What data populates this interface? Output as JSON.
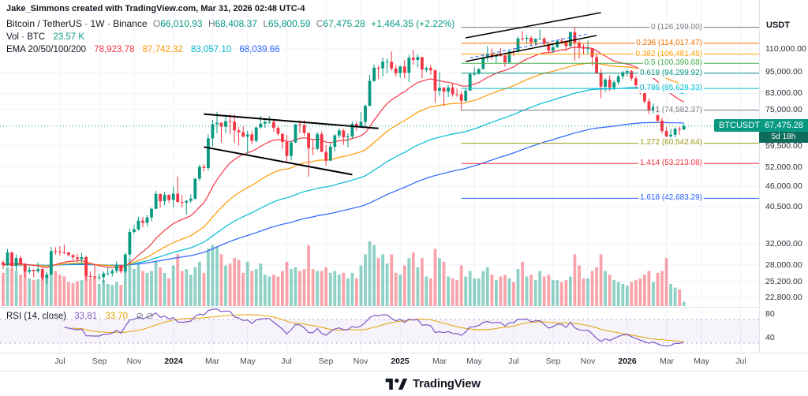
{
  "attribution": "Jake_Simmons created with TradingView.com, Mar 31, 2026 02:48 UTC-4",
  "symbol_legend": {
    "title": "Bitcoin / TetherUS · 1W · Binance",
    "o_label": "O",
    "o": "66,010.93",
    "h_label": "H",
    "h": "68,408.37",
    "l_label": "L",
    "l": "65,800.59",
    "c_label": "C",
    "c": "67,475.28",
    "change": "+1,464.35 (+2.22%)"
  },
  "volume_legend": {
    "label": "Vol · BTC",
    "value": "23.57 K"
  },
  "ema_legend": {
    "label": "EMA 20/50/100/200",
    "v20": "78,923.78",
    "v50": "87,742.32",
    "v100": "83,057.10",
    "v200": "68,039.66"
  },
  "rsi_legend": {
    "label": "RSI (14, close)",
    "rsi": "33.81",
    "ma": "33.70"
  },
  "colors": {
    "up": "#089981",
    "down": "#f23645",
    "ema20": "#f23645",
    "ema50": "#ff9800",
    "ema100": "#00bcd4",
    "ema200": "#2962ff",
    "rsi": "#7e57c2",
    "rsi_ma": "#e2a400",
    "grid": "#f0f3fa",
    "separator": "#e0e3eb",
    "badge": "#089981",
    "muted": "#787b86"
  },
  "price_axis": {
    "currency": "USDT",
    "labels": [
      {
        "text": "110,000.00",
        "p": 110000
      },
      {
        "text": "95,000.00",
        "p": 95000
      },
      {
        "text": "83,000.00",
        "p": 83000
      },
      {
        "text": "75,000.00",
        "p": 75000
      },
      {
        "text": "59,500.00",
        "p": 59500
      },
      {
        "text": "52,000.00",
        "p": 52000
      },
      {
        "text": "46,000.00",
        "p": 46000
      },
      {
        "text": "40,500.00",
        "p": 40500
      },
      {
        "text": "32,000.00",
        "p": 32000
      },
      {
        "text": "28,000.00",
        "p": 28000
      },
      {
        "text": "25,200.00",
        "p": 25200
      },
      {
        "text": "22,800.00",
        "p": 22800
      }
    ],
    "current": {
      "symbol": "BTCUSDT",
      "price": "67,475.28",
      "countdown": "5d 18h"
    },
    "rsi_labels": [
      {
        "text": "80",
        "v": 80
      },
      {
        "text": "40",
        "v": 40
      }
    ]
  },
  "time_axis": [
    {
      "text": "Jul",
      "i": 13
    },
    {
      "text": "Sep",
      "i": 22
    },
    {
      "text": "Nov",
      "i": 30
    },
    {
      "text": "2024",
      "i": 39,
      "year": true
    },
    {
      "text": "Mar",
      "i": 48
    },
    {
      "text": "May",
      "i": 56
    },
    {
      "text": "Jul",
      "i": 65
    },
    {
      "text": "Sep",
      "i": 74
    },
    {
      "text": "Nov",
      "i": 82
    },
    {
      "text": "2025",
      "i": 91,
      "year": true
    },
    {
      "text": "Mar",
      "i": 100
    },
    {
      "text": "May",
      "i": 108
    },
    {
      "text": "Jul",
      "i": 117
    },
    {
      "text": "Sep",
      "i": 126
    },
    {
      "text": "Nov",
      "i": 134
    },
    {
      "text": "2026",
      "i": 143,
      "year": true
    },
    {
      "text": "Mar",
      "i": 152
    },
    {
      "text": "May",
      "i": 160
    },
    {
      "text": "Jul",
      "i": 169
    }
  ],
  "fib_levels": [
    {
      "text": "0 (126,199.00)",
      "p": 126199.0,
      "color": "#787b86"
    },
    {
      "text": "0.236 (114,017.47)",
      "p": 114017.47,
      "color": "#ef6c00"
    },
    {
      "text": "0.382 (106,481.45)",
      "p": 106481.45,
      "color": "#ffa000"
    },
    {
      "text": "0.5 (100,390.68)",
      "p": 100390.68,
      "color": "#4caf50"
    },
    {
      "text": "0.618 (94,299.92)",
      "p": 94299.92,
      "color": "#089981"
    },
    {
      "text": "0.786 (85,628.33)",
      "p": 85628.33,
      "color": "#00bcd4"
    },
    {
      "text": "1 (74,582.37)",
      "p": 74582.37,
      "color": "#787b86"
    },
    {
      "text": "1.272 (60,542.64)",
      "p": 60542.64,
      "color": "#9e9d24"
    },
    {
      "text": "1.414 (53,213.08)",
      "p": 53213.08,
      "color": "#f23645"
    },
    {
      "text": "1.618 (42,683.29)",
      "p": 42683.29,
      "color": "#2962ff"
    }
  ],
  "branding": {
    "name": "TradingView"
  },
  "chart_data": {
    "type": "candlestick",
    "symbol": "BTCUSDT",
    "exchange": "Binance",
    "timeframe": "1W",
    "scale": "log",
    "start_date": "2023-04-03",
    "interval_days": 7,
    "last_close": 67475.28,
    "ema_periods": [
      20,
      50,
      100,
      200
    ],
    "rsi": {
      "length": 14,
      "source": "close"
    },
    "fib_start_i": 105,
    "drawings": [
      {
        "type": "trendline",
        "i1": 46,
        "p1": 72800,
        "i2": 86,
        "p2": 66500,
        "color": "#000000",
        "width": 2
      },
      {
        "type": "trendline",
        "i1": 46,
        "p1": 59100,
        "i2": 80,
        "p2": 49600,
        "color": "#000000",
        "width": 2
      },
      {
        "type": "trendline",
        "i1": 106,
        "p1": 118000,
        "i2": 137,
        "p2": 138500,
        "color": "#000000",
        "width": 1.5
      },
      {
        "type": "trendline",
        "i1": 106,
        "p1": 101600,
        "i2": 136,
        "p2": 119800,
        "color": "#000000",
        "width": 1.5
      },
      {
        "type": "trendline",
        "i1": 107,
        "p1": 104000,
        "i2": 134,
        "p2": 121000,
        "color": "#2962ff",
        "width": 1,
        "dash": "4 3"
      }
    ],
    "candles": [
      [
        28450,
        28800,
        27250,
        27950,
        180
      ],
      [
        27950,
        30950,
        27800,
        30300,
        210
      ],
      [
        30300,
        30400,
        27050,
        27800,
        200
      ],
      [
        27800,
        29900,
        26950,
        29250,
        190
      ],
      [
        29250,
        29700,
        27700,
        28080,
        170
      ],
      [
        28080,
        28320,
        25850,
        26800,
        185
      ],
      [
        26800,
        27700,
        26400,
        27100,
        150
      ],
      [
        27100,
        27200,
        25900,
        26870,
        140
      ],
      [
        26870,
        28450,
        26550,
        27250,
        145
      ],
      [
        27250,
        27400,
        25350,
        25750,
        175
      ],
      [
        25750,
        26800,
        24800,
        26340,
        160
      ],
      [
        26340,
        31400,
        26250,
        30550,
        230
      ],
      [
        30550,
        31300,
        29850,
        30480,
        190
      ],
      [
        30480,
        31550,
        29700,
        30330,
        170
      ],
      [
        30330,
        31850,
        29950,
        30290,
        160
      ],
      [
        30290,
        30340,
        29550,
        29790,
        130
      ],
      [
        29790,
        29970,
        28850,
        29350,
        125
      ],
      [
        29350,
        30050,
        28550,
        29050,
        135
      ],
      [
        29050,
        30200,
        28350,
        29400,
        140
      ],
      [
        29400,
        29650,
        25300,
        26100,
        220
      ],
      [
        26100,
        26850,
        25750,
        26000,
        150
      ],
      [
        26000,
        28150,
        25550,
        25900,
        160
      ],
      [
        25900,
        26450,
        25350,
        25900,
        120
      ],
      [
        25900,
        26850,
        24900,
        26500,
        140
      ],
      [
        26500,
        27450,
        26150,
        26550,
        120
      ],
      [
        26550,
        27300,
        26000,
        26950,
        115
      ],
      [
        26950,
        28600,
        26550,
        27950,
        130
      ],
      [
        27950,
        27990,
        26500,
        26850,
        115
      ],
      [
        26850,
        30250,
        26600,
        29900,
        190
      ],
      [
        29900,
        35250,
        29350,
        34500,
        260
      ],
      [
        34500,
        36000,
        34050,
        35050,
        200
      ],
      [
        35050,
        38000,
        34750,
        37050,
        230
      ],
      [
        37050,
        37950,
        35550,
        36550,
        190
      ],
      [
        36550,
        38450,
        35750,
        37800,
        180
      ],
      [
        37800,
        40250,
        36850,
        39950,
        190
      ],
      [
        39950,
        44750,
        39850,
        43900,
        240
      ],
      [
        43900,
        43990,
        40150,
        41900,
        210
      ],
      [
        41900,
        44400,
        40800,
        43600,
        180
      ],
      [
        43600,
        43800,
        41450,
        42250,
        150
      ],
      [
        42250,
        45950,
        40250,
        43950,
        220
      ],
      [
        43950,
        48990,
        41500,
        41700,
        280
      ],
      [
        41700,
        43580,
        40280,
        41550,
        190
      ],
      [
        41550,
        42250,
        38500,
        42000,
        200
      ],
      [
        42000,
        43790,
        41420,
        42600,
        170
      ],
      [
        42600,
        48600,
        42270,
        48300,
        210
      ],
      [
        48300,
        52890,
        47710,
        52100,
        240
      ],
      [
        52100,
        52990,
        50630,
        51700,
        180
      ],
      [
        51700,
        64000,
        50930,
        62400,
        310
      ],
      [
        62400,
        70200,
        59250,
        68300,
        330
      ],
      [
        68300,
        73800,
        64550,
        68900,
        320
      ],
      [
        68900,
        68990,
        60800,
        67200,
        280
      ],
      [
        67200,
        71580,
        64550,
        69600,
        220
      ],
      [
        69600,
        72800,
        64100,
        69350,
        230
      ],
      [
        69350,
        72750,
        60660,
        65650,
        260
      ],
      [
        65650,
        67120,
        59640,
        64940,
        250
      ],
      [
        64940,
        67230,
        62780,
        63100,
        180
      ],
      [
        63100,
        65500,
        56500,
        64000,
        240
      ],
      [
        64000,
        65500,
        60170,
        61450,
        190
      ],
      [
        61450,
        67080,
        60800,
        66900,
        200
      ],
      [
        66900,
        71980,
        66310,
        68500,
        230
      ],
      [
        68500,
        70650,
        66670,
        69300,
        170
      ],
      [
        69300,
        71950,
        68450,
        69300,
        160
      ],
      [
        69300,
        70190,
        65100,
        66700,
        170
      ],
      [
        66700,
        67290,
        63380,
        64250,
        160
      ],
      [
        64250,
        64520,
        58400,
        61000,
        190
      ],
      [
        61000,
        63850,
        53500,
        55850,
        240
      ],
      [
        55850,
        61400,
        54260,
        60800,
        200
      ],
      [
        60800,
        68360,
        60630,
        68150,
        210
      ],
      [
        68150,
        69990,
        64530,
        67900,
        190
      ],
      [
        67900,
        70080,
        63500,
        64600,
        200
      ],
      [
        64600,
        64700,
        49000,
        58700,
        330
      ],
      [
        58700,
        61850,
        56100,
        58450,
        200
      ],
      [
        58450,
        64950,
        57860,
        64100,
        190
      ],
      [
        64100,
        65200,
        57250,
        57300,
        190
      ],
      [
        57300,
        59830,
        52550,
        54160,
        210
      ],
      [
        54160,
        60660,
        54150,
        59180,
        180
      ],
      [
        59180,
        64100,
        57480,
        63580,
        190
      ],
      [
        63580,
        66480,
        62550,
        65600,
        170
      ],
      [
        65600,
        66290,
        59860,
        62800,
        180
      ],
      [
        62800,
        64450,
        58950,
        63200,
        150
      ],
      [
        63200,
        69400,
        62450,
        68400,
        180
      ],
      [
        68400,
        69520,
        65500,
        67000,
        150
      ],
      [
        67000,
        73600,
        66800,
        69300,
        220
      ],
      [
        69300,
        77300,
        66830,
        76700,
        280
      ],
      [
        76700,
        93400,
        76500,
        89850,
        350
      ],
      [
        89850,
        99660,
        89370,
        97700,
        330
      ],
      [
        97700,
        98950,
        90770,
        97250,
        260
      ],
      [
        97250,
        104090,
        92510,
        101400,
        280
      ],
      [
        101400,
        103650,
        94150,
        101420,
        230
      ],
      [
        101420,
        108360,
        95700,
        97200,
        280
      ],
      [
        97200,
        99500,
        92280,
        94300,
        180
      ],
      [
        94300,
        98980,
        91530,
        98400,
        170
      ],
      [
        98400,
        102740,
        91200,
        94500,
        220
      ],
      [
        94500,
        106000,
        89160,
        104100,
        260
      ],
      [
        104100,
        109350,
        99550,
        102600,
        290
      ],
      [
        102600,
        106280,
        97780,
        104500,
        210
      ],
      [
        104500,
        104550,
        91230,
        96500,
        260
      ],
      [
        96500,
        98340,
        94880,
        97500,
        160
      ],
      [
        97500,
        99480,
        93380,
        96100,
        150
      ],
      [
        96100,
        96500,
        78250,
        84400,
        310
      ],
      [
        84400,
        95000,
        81660,
        86000,
        260
      ],
      [
        86000,
        86470,
        76600,
        83980,
        240
      ],
      [
        83980,
        87470,
        81130,
        86100,
        160
      ],
      [
        86100,
        88770,
        81280,
        82600,
        150
      ],
      [
        82600,
        85550,
        81220,
        82500,
        140
      ],
      [
        82500,
        83900,
        74440,
        79200,
        220
      ],
      [
        79200,
        86000,
        78950,
        84500,
        160
      ],
      [
        84500,
        94700,
        84450,
        93800,
        190
      ],
      [
        93800,
        97890,
        92850,
        94000,
        150
      ],
      [
        94000,
        97450,
        93350,
        96800,
        150
      ],
      [
        96800,
        105700,
        96750,
        104100,
        190
      ],
      [
        104100,
        111980,
        101500,
        106450,
        210
      ],
      [
        106450,
        110300,
        102850,
        104700,
        170
      ],
      [
        104700,
        106800,
        100700,
        105700,
        140
      ],
      [
        105700,
        110500,
        104650,
        105500,
        160
      ],
      [
        105500,
        107350,
        98240,
        101000,
        170
      ],
      [
        101000,
        108800,
        100650,
        108300,
        150
      ],
      [
        108300,
        110550,
        105150,
        108200,
        130
      ],
      [
        108200,
        118900,
        107550,
        117500,
        200
      ],
      [
        117500,
        123200,
        115700,
        117300,
        240
      ],
      [
        117300,
        120250,
        114550,
        118000,
        160
      ],
      [
        118000,
        119450,
        111950,
        114800,
        170
      ],
      [
        114800,
        117550,
        112400,
        117400,
        140
      ],
      [
        117400,
        124500,
        116900,
        117400,
        190
      ],
      [
        117400,
        118650,
        111900,
        113450,
        160
      ],
      [
        113450,
        113500,
        107270,
        108800,
        170
      ],
      [
        108800,
        113300,
        107300,
        111200,
        140
      ],
      [
        111200,
        116500,
        110750,
        115950,
        140
      ],
      [
        115950,
        117900,
        114500,
        115750,
        130
      ],
      [
        115750,
        116150,
        108700,
        112000,
        140
      ],
      [
        112000,
        122700,
        111600,
        122400,
        160
      ],
      [
        122400,
        126199,
        102000,
        114500,
        280
      ],
      [
        114500,
        116100,
        103530,
        111000,
        220
      ],
      [
        111000,
        113350,
        106660,
        110100,
        150
      ],
      [
        110100,
        116000,
        106500,
        110500,
        150
      ],
      [
        110500,
        110600,
        98900,
        104500,
        190
      ],
      [
        104500,
        107200,
        93700,
        94500,
        210
      ],
      [
        94500,
        97000,
        80500,
        86600,
        280
      ],
      [
        86600,
        91500,
        83800,
        90500,
        190
      ],
      [
        90500,
        93000,
        84200,
        86200,
        170
      ],
      [
        86200,
        90200,
        84800,
        89000,
        140
      ],
      [
        89000,
        93400,
        87600,
        92500,
        130
      ],
      [
        92500,
        95800,
        90900,
        94800,
        120
      ],
      [
        94800,
        96700,
        92400,
        95600,
        110
      ],
      [
        95600,
        96000,
        89900,
        91200,
        130
      ],
      [
        91200,
        92600,
        86200,
        87400,
        140
      ],
      [
        87400,
        88800,
        82300,
        83100,
        150
      ],
      [
        83100,
        84900,
        77900,
        78900,
        170
      ],
      [
        78900,
        80400,
        72800,
        74600,
        190
      ],
      [
        74600,
        77800,
        73100,
        76300,
        130
      ],
      [
        76300,
        76900,
        68900,
        69800,
        180
      ],
      [
        69800,
        71200,
        64300,
        65400,
        190
      ],
      [
        65400,
        67000,
        58850,
        63200,
        260
      ],
      [
        63200,
        66400,
        61800,
        63900,
        120
      ],
      [
        63900,
        66900,
        62500,
        66300,
        100
      ],
      [
        66300,
        67200,
        63900,
        66010.93,
        90
      ],
      [
        66010.93,
        68408.37,
        65800.59,
        67475.28,
        23.57
      ]
    ]
  }
}
